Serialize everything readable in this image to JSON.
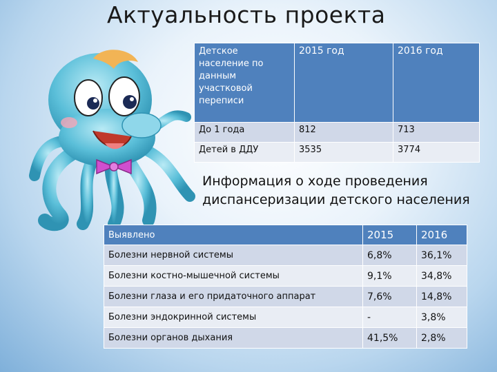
{
  "title": "Актуальность проекта",
  "census_table": {
    "headers": [
      "Детское население по данным участковой переписи",
      "2015 год",
      "2016 год"
    ],
    "rows": [
      [
        "До 1 года",
        "812",
        "713"
      ],
      [
        "Детей в ДДУ",
        "3535",
        "3774"
      ]
    ]
  },
  "info_heading": "Информация о ходе проведения диспансеризации детского населения",
  "diseases_table": {
    "headers": [
      "Выявлено",
      "2015",
      "2016"
    ],
    "rows": [
      [
        "Болезни нервной системы",
        "6,8%",
        "36,1%"
      ],
      [
        "Болезни костно-мышечной системы",
        "9,1%",
        "34,8%"
      ],
      [
        "Болезни глаза и его придаточного аппарат",
        "7,6%",
        "14,8%"
      ],
      [
        "Болезни эндокринной системы",
        "-",
        "3,8%"
      ],
      [
        "Болезни органов дыхания",
        "41,5%",
        "2,8%"
      ]
    ]
  },
  "colors": {
    "header": "#4f81bd",
    "row_odd": "#d0d8e8",
    "row_even": "#e9edf4",
    "mascot": "#5bbfd9"
  },
  "illustration": "octopus-cartoon"
}
